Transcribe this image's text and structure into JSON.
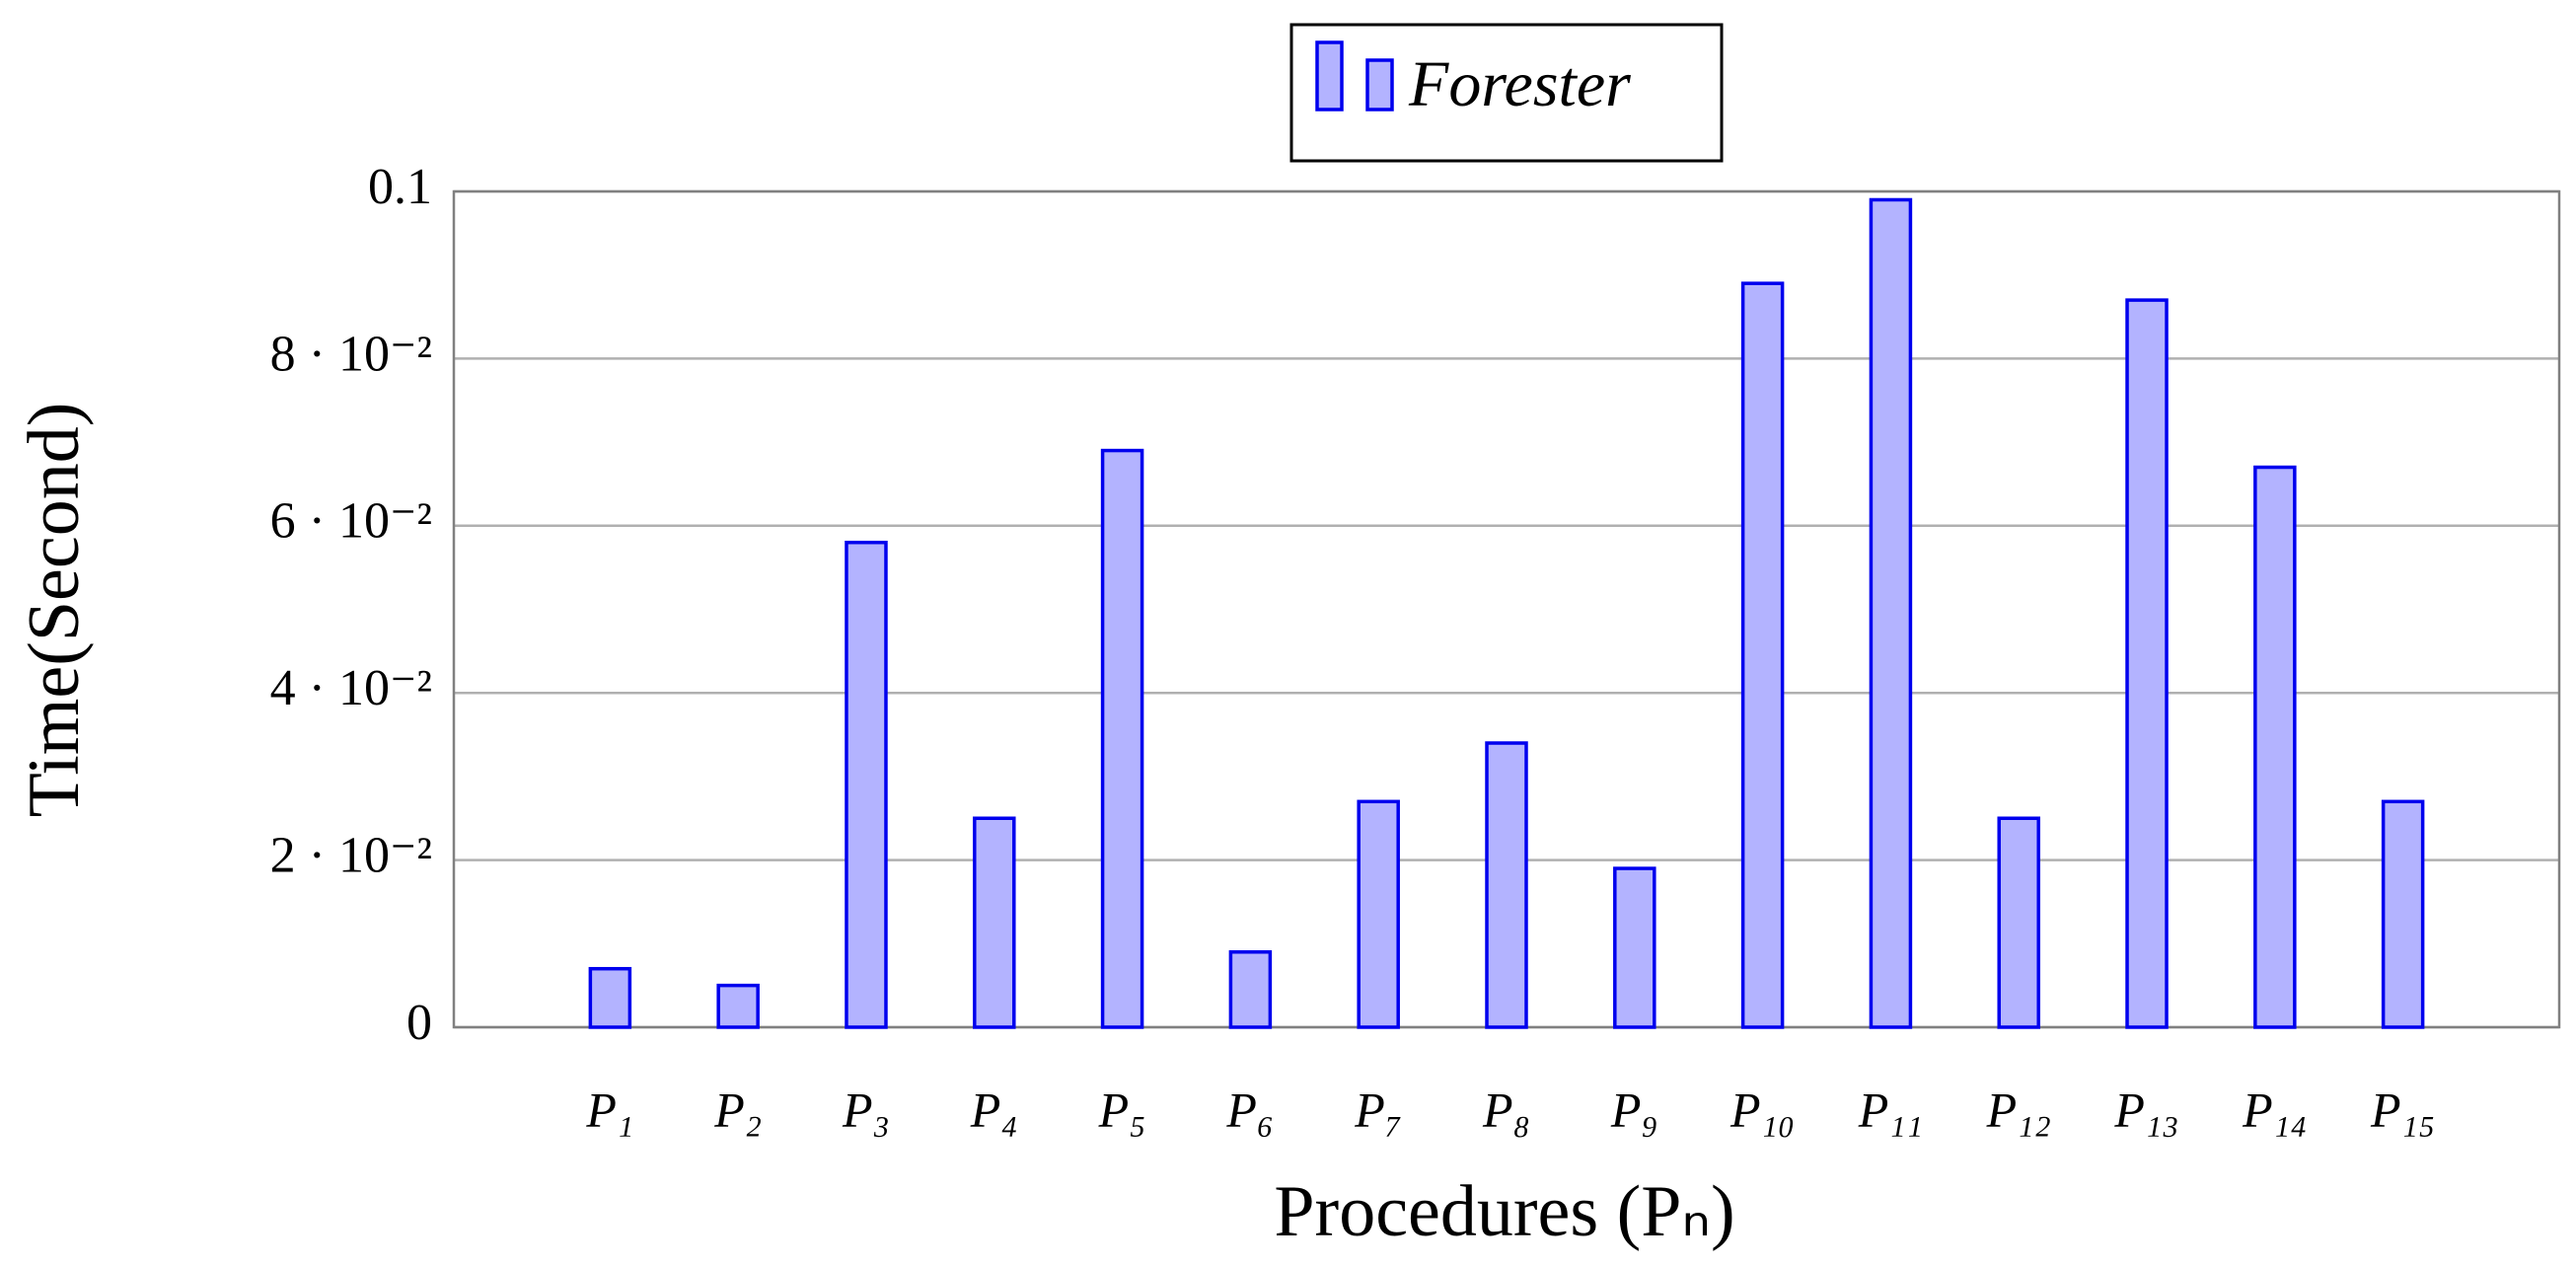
{
  "chart_data": {
    "type": "bar",
    "x_label": "Procedures (Pₙ)",
    "y_label": "Time(Second)",
    "categories": [
      "P₁",
      "P₂",
      "P₃",
      "P₄",
      "P₅",
      "P₆",
      "P₇",
      "P₈",
      "P₉",
      "P₁₀",
      "P₁₁",
      "P₁₂",
      "P₁₃",
      "P₁₄",
      "P₁₅"
    ],
    "series": [
      {
        "name": "Forester",
        "color": "#b3b3ff",
        "edge_color": "#0000ee",
        "values": [
          0.007,
          0.005,
          0.058,
          0.025,
          0.069,
          0.009,
          0.027,
          0.034,
          0.019,
          0.089,
          0.099,
          0.025,
          0.087,
          0.067,
          0.027
        ]
      }
    ],
    "ylim": [
      0,
      0.1
    ],
    "yticks": [
      0,
      {
        "value": 0.02,
        "label": "2 · 10⁻²"
      },
      {
        "value": 0.04,
        "label": "4 · 10⁻²"
      },
      {
        "value": 0.06,
        "label": "6 · 10⁻²"
      },
      {
        "value": 0.08,
        "label": "8 · 10⁻²"
      },
      {
        "value": 0.1,
        "label": "0.1"
      }
    ],
    "grid": true,
    "legend_position": "top"
  }
}
